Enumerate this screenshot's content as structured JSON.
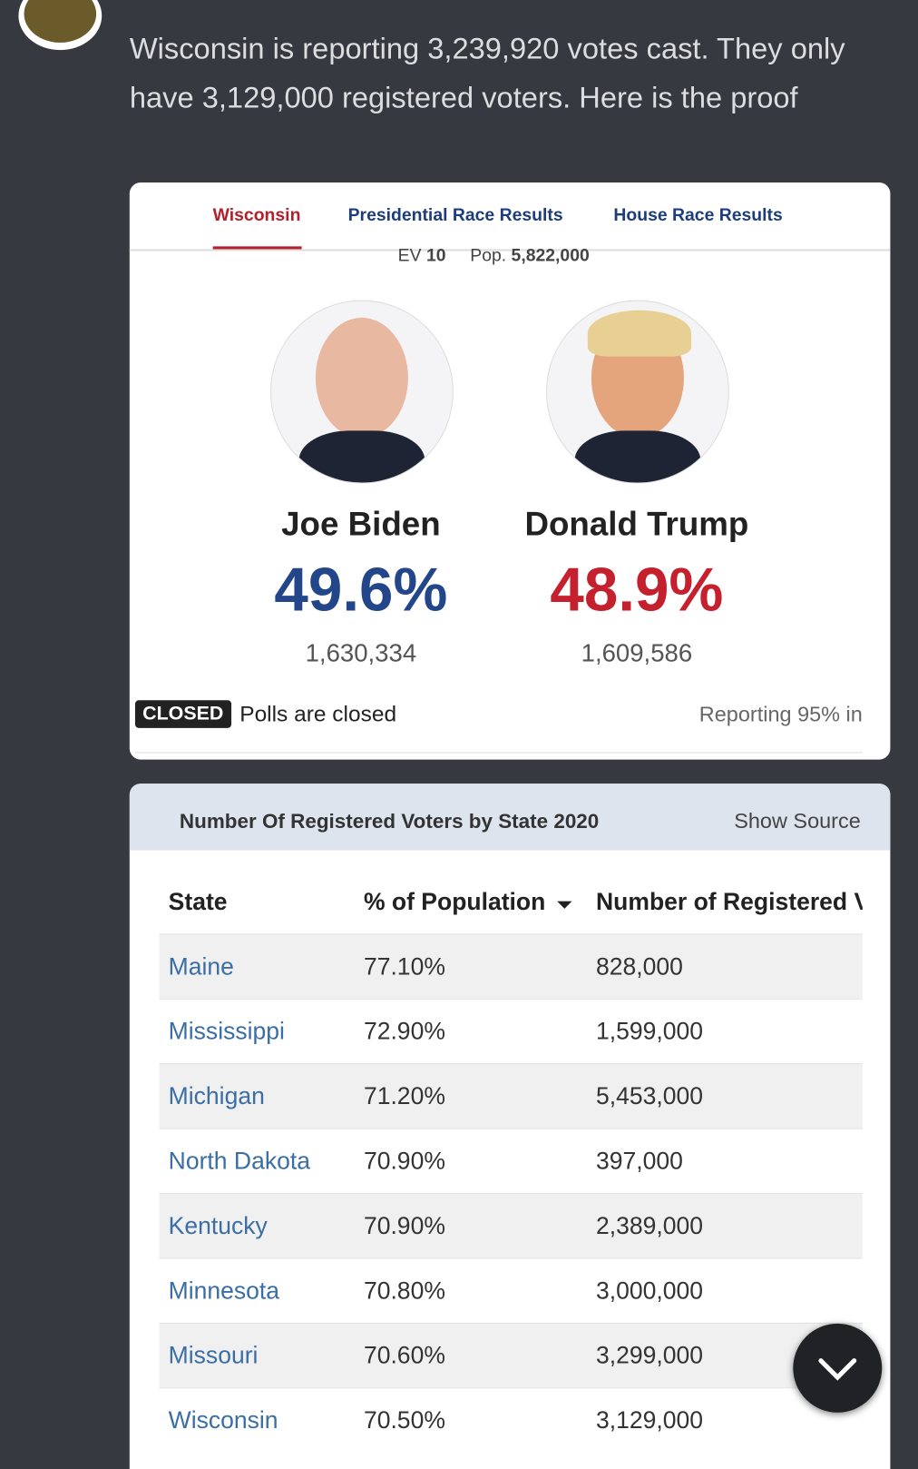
{
  "post": {
    "text": "Wisconsin is reporting 3,239,920 votes cast. They only have 3,129,000 registered voters. Here is the proof"
  },
  "results_card": {
    "tabs": [
      "Wisconsin",
      "Presidential Race Results",
      "House Race Results"
    ],
    "ev_label": "EV",
    "ev_value": "10",
    "pop_label": "Pop.",
    "pop_value": "5,822,000",
    "candidates": [
      {
        "name": "Joe Biden",
        "percent": "49.6%",
        "votes": "1,630,334"
      },
      {
        "name": "Donald Trump",
        "percent": "48.9%",
        "votes": "1,609,586"
      }
    ],
    "status_badge": "CLOSED",
    "status_text": "Polls are closed",
    "reporting": "Reporting 95% in"
  },
  "table_card": {
    "title": "Number Of Registered Voters by State 2020",
    "source_link": "Show Source",
    "columns": [
      "State",
      "% of Population",
      "Number of Registered V"
    ],
    "rows": [
      [
        "Maine",
        "77.10%",
        "828,000"
      ],
      [
        "Mississippi",
        "72.90%",
        "1,599,000"
      ],
      [
        "Michigan",
        "71.20%",
        "5,453,000"
      ],
      [
        "North Dakota",
        "70.90%",
        "397,000"
      ],
      [
        "Kentucky",
        "70.90%",
        "2,389,000"
      ],
      [
        "Minnesota",
        "70.80%",
        "3,000,000"
      ],
      [
        "Missouri",
        "70.60%",
        "3,299,000"
      ],
      [
        "Wisconsin",
        "70.50%",
        "3,129,000"
      ]
    ]
  }
}
